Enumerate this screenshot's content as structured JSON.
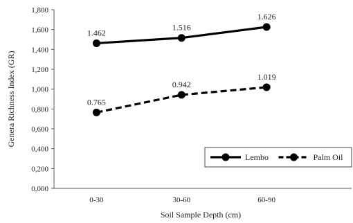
{
  "chart_data": {
    "type": "line",
    "title": "",
    "xlabel": "Soil Sample Depth (cm)",
    "ylabel": "Genera Richness Index (GR)",
    "categories": [
      "0-30",
      "30-60",
      "60-90"
    ],
    "ylim": [
      0,
      1.8
    ],
    "yticks": [
      0,
      0.2,
      0.4,
      0.6,
      0.8,
      1.0,
      1.2,
      1.4,
      1.6,
      1.8
    ],
    "ytick_labels": [
      "0,000",
      "0,200",
      "0,400",
      "0,600",
      "0,800",
      "1,000",
      "1,200",
      "1,400",
      "1,600",
      "1,800"
    ],
    "grid": false,
    "legend_position": "bottom-right",
    "series": [
      {
        "name": "Lembo",
        "values": [
          1.462,
          1.516,
          1.626
        ],
        "labels": [
          "1.462",
          "1.516",
          "1.626"
        ],
        "line_style": "solid",
        "color": "#000000"
      },
      {
        "name": "Palm Oil",
        "values": [
          0.765,
          0.942,
          1.019
        ],
        "labels": [
          "0.765",
          "0.942",
          "1.019"
        ],
        "line_style": "dashed",
        "color": "#000000"
      }
    ]
  }
}
